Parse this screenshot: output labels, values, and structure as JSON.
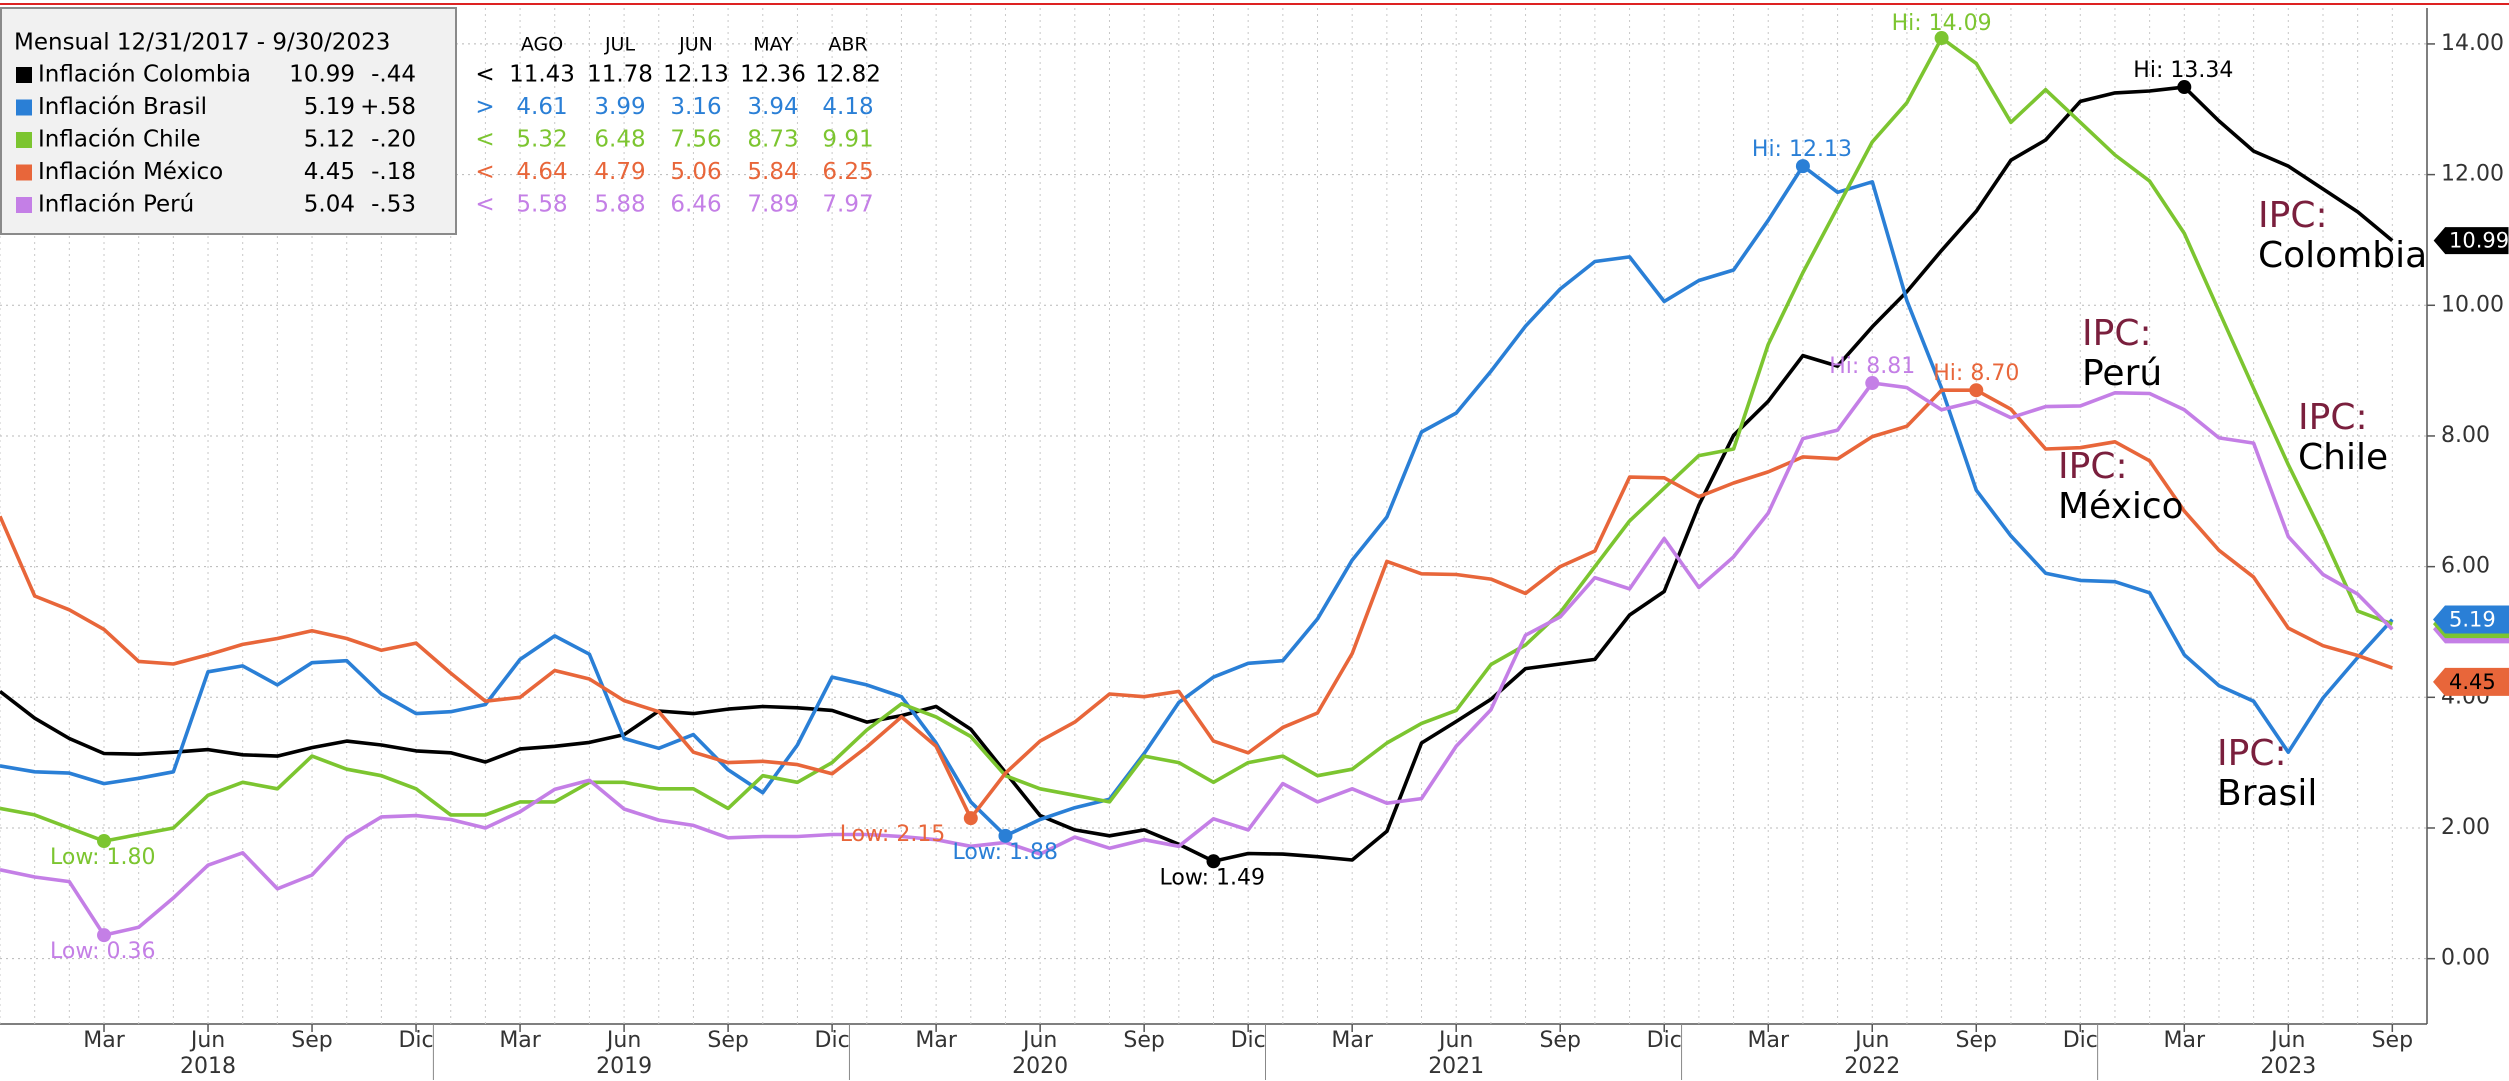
{
  "chart_data": {
    "type": "line",
    "legend_title": "Mensual 12/31/2017 - 9/30/2023",
    "table_headers": [
      "AGO",
      "JUL",
      "JUN",
      "MAY",
      "ABR"
    ],
    "x": [
      "2017-12",
      "2018-01",
      "2018-02",
      "2018-03",
      "2018-04",
      "2018-05",
      "2018-06",
      "2018-07",
      "2018-08",
      "2018-09",
      "2018-10",
      "2018-11",
      "2018-12",
      "2019-01",
      "2019-02",
      "2019-03",
      "2019-04",
      "2019-05",
      "2019-06",
      "2019-07",
      "2019-08",
      "2019-09",
      "2019-10",
      "2019-11",
      "2019-12",
      "2020-01",
      "2020-02",
      "2020-03",
      "2020-04",
      "2020-05",
      "2020-06",
      "2020-07",
      "2020-08",
      "2020-09",
      "2020-10",
      "2020-11",
      "2020-12",
      "2021-01",
      "2021-02",
      "2021-03",
      "2021-04",
      "2021-05",
      "2021-06",
      "2021-07",
      "2021-08",
      "2021-09",
      "2021-10",
      "2021-11",
      "2021-12",
      "2022-01",
      "2022-02",
      "2022-03",
      "2022-04",
      "2022-05",
      "2022-06",
      "2022-07",
      "2022-08",
      "2022-09",
      "2022-10",
      "2022-11",
      "2022-12",
      "2023-01",
      "2023-02",
      "2023-03",
      "2023-04",
      "2023-05",
      "2023-06",
      "2023-07",
      "2023-08",
      "2023-09"
    ],
    "xlim": [
      "2017-12",
      "2023-10"
    ],
    "xticks": [
      {
        "value": "2018-03",
        "label": "Mar"
      },
      {
        "value": "2018-06",
        "label": "Jun"
      },
      {
        "value": "2018-09",
        "label": "Sep"
      },
      {
        "value": "2018-12",
        "label": "Dic"
      },
      {
        "value": "2019-03",
        "label": "Mar"
      },
      {
        "value": "2019-06",
        "label": "Jun"
      },
      {
        "value": "2019-09",
        "label": "Sep"
      },
      {
        "value": "2019-12",
        "label": "Dic"
      },
      {
        "value": "2020-03",
        "label": "Mar"
      },
      {
        "value": "2020-06",
        "label": "Jun"
      },
      {
        "value": "2020-09",
        "label": "Sep"
      },
      {
        "value": "2020-12",
        "label": "Dic"
      },
      {
        "value": "2021-03",
        "label": "Mar"
      },
      {
        "value": "2021-06",
        "label": "Jun"
      },
      {
        "value": "2021-09",
        "label": "Sep"
      },
      {
        "value": "2021-12",
        "label": "Dic"
      },
      {
        "value": "2022-03",
        "label": "Mar"
      },
      {
        "value": "2022-06",
        "label": "Jun"
      },
      {
        "value": "2022-09",
        "label": "Sep"
      },
      {
        "value": "2022-12",
        "label": "Dic"
      },
      {
        "value": "2023-03",
        "label": "Mar"
      },
      {
        "value": "2023-06",
        "label": "Jun"
      },
      {
        "value": "2023-09",
        "label": "Sep"
      }
    ],
    "xyears": [
      "2018",
      "2019",
      "2020",
      "2021",
      "2022",
      "2023"
    ],
    "ylim": [
      -1,
      14.55
    ],
    "yticks": [
      {
        "value": 0,
        "label": "0.00"
      },
      {
        "value": 2,
        "label": "2.00"
      },
      {
        "value": 4,
        "label": "4.00"
      },
      {
        "value": 6,
        "label": "6.00"
      },
      {
        "value": 8,
        "label": "8.00"
      },
      {
        "value": 10,
        "label": "10.00"
      },
      {
        "value": 12,
        "label": "12.00"
      },
      {
        "value": 14,
        "label": "14.00"
      }
    ],
    "grid": true,
    "series": [
      {
        "name": "Inflación Colombia",
        "color": "#000000",
        "change": "-.44",
        "arrow": "<",
        "values": [
          4.09,
          3.68,
          3.37,
          3.14,
          3.13,
          3.16,
          3.2,
          3.12,
          3.1,
          3.23,
          3.33,
          3.27,
          3.18,
          3.15,
          3.01,
          3.21,
          3.25,
          3.31,
          3.43,
          3.79,
          3.75,
          3.82,
          3.86,
          3.84,
          3.8,
          3.62,
          3.72,
          3.86,
          3.51,
          2.85,
          2.19,
          1.97,
          1.88,
          1.97,
          1.75,
          1.49,
          1.61,
          1.6,
          1.56,
          1.51,
          1.95,
          3.3,
          3.63,
          3.97,
          4.44,
          4.51,
          4.58,
          5.26,
          5.62,
          6.94,
          8.01,
          8.53,
          9.23,
          9.07,
          9.67,
          10.21,
          10.84,
          11.44,
          12.22,
          12.53,
          13.12,
          13.25,
          13.28,
          13.34,
          12.82,
          12.36,
          12.13,
          11.78,
          11.43,
          10.99
        ]
      },
      {
        "name": "Inflación Brasil",
        "color": "#2a7fd6",
        "change": "+.58",
        "arrow": ">",
        "values": [
          2.95,
          2.86,
          2.84,
          2.68,
          2.76,
          2.86,
          4.39,
          4.48,
          4.19,
          4.53,
          4.56,
          4.05,
          3.75,
          3.78,
          3.89,
          4.58,
          4.94,
          4.66,
          3.37,
          3.22,
          3.43,
          2.89,
          2.54,
          3.27,
          4.31,
          4.19,
          4.01,
          3.3,
          2.4,
          1.88,
          2.13,
          2.31,
          2.44,
          3.14,
          3.92,
          4.31,
          4.52,
          4.56,
          5.2,
          6.1,
          6.76,
          8.06,
          8.35,
          8.99,
          9.68,
          10.25,
          10.67,
          10.74,
          10.06,
          10.38,
          10.54,
          11.3,
          12.13,
          11.73,
          11.89,
          10.07,
          8.73,
          7.17,
          6.47,
          5.9,
          5.79,
          5.77,
          5.6,
          4.65,
          4.18,
          3.94,
          3.16,
          3.99,
          4.61,
          5.19
        ]
      },
      {
        "name": "Inflación Chile",
        "color": "#7cc530",
        "change": "-.20",
        "arrow": "<",
        "values": [
          2.3,
          2.2,
          2.0,
          1.8,
          1.9,
          2.0,
          2.5,
          2.7,
          2.6,
          3.1,
          2.9,
          2.8,
          2.6,
          2.2,
          2.2,
          2.4,
          2.4,
          2.7,
          2.7,
          2.6,
          2.6,
          2.3,
          2.8,
          2.7,
          3.0,
          3.5,
          3.9,
          3.7,
          3.4,
          2.8,
          2.6,
          2.5,
          2.4,
          3.1,
          3.0,
          2.7,
          3.0,
          3.1,
          2.8,
          2.9,
          3.3,
          3.6,
          3.8,
          4.5,
          4.8,
          5.3,
          6.0,
          6.7,
          7.2,
          7.7,
          7.8,
          9.4,
          10.5,
          11.5,
          12.5,
          13.1,
          14.09,
          13.7,
          12.8,
          13.3,
          12.8,
          12.3,
          11.9,
          11.1,
          9.91,
          8.73,
          7.56,
          6.48,
          5.32,
          5.12
        ]
      },
      {
        "name": "Inflación México",
        "color": "#e8663a",
        "change": "-.18",
        "arrow": "<",
        "values": [
          6.77,
          5.55,
          5.34,
          5.04,
          4.55,
          4.51,
          4.65,
          4.81,
          4.9,
          5.02,
          4.9,
          4.72,
          4.83,
          4.37,
          3.94,
          4.0,
          4.41,
          4.28,
          3.95,
          3.78,
          3.16,
          3.0,
          3.02,
          2.97,
          2.83,
          3.24,
          3.7,
          3.25,
          2.15,
          2.84,
          3.33,
          3.62,
          4.05,
          4.01,
          4.09,
          3.33,
          3.15,
          3.54,
          3.76,
          4.67,
          6.08,
          5.89,
          5.88,
          5.81,
          5.59,
          6.0,
          6.24,
          7.37,
          7.36,
          7.07,
          7.28,
          7.45,
          7.68,
          7.65,
          7.99,
          8.15,
          8.7,
          8.7,
          8.41,
          7.8,
          7.82,
          7.91,
          7.62,
          6.85,
          6.25,
          5.84,
          5.06,
          4.79,
          4.64,
          4.45
        ]
      },
      {
        "name": "Inflación Perú",
        "color": "#c47fe6",
        "change": "-.53",
        "arrow": "<",
        "values": [
          1.36,
          1.25,
          1.18,
          0.36,
          0.48,
          0.93,
          1.43,
          1.62,
          1.07,
          1.28,
          1.85,
          2.17,
          2.19,
          2.13,
          2.0,
          2.25,
          2.59,
          2.73,
          2.29,
          2.12,
          2.04,
          1.85,
          1.87,
          1.87,
          1.9,
          1.9,
          1.87,
          1.82,
          1.72,
          1.78,
          1.6,
          1.86,
          1.69,
          1.82,
          1.72,
          2.14,
          1.97,
          2.68,
          2.4,
          2.6,
          2.38,
          2.45,
          3.25,
          3.81,
          4.95,
          5.23,
          5.83,
          5.66,
          6.43,
          5.68,
          6.15,
          6.82,
          7.96,
          8.09,
          8.81,
          8.74,
          8.4,
          8.53,
          8.28,
          8.45,
          8.46,
          8.66,
          8.65,
          8.4,
          7.97,
          7.89,
          6.46,
          5.88,
          5.58,
          5.04
        ]
      }
    ],
    "annotations": [
      {
        "text": "Hi: 13.34",
        "series": 0,
        "x": "2023-03"
      },
      {
        "text": "Low: 1.49",
        "series": 0,
        "x": "2020-11"
      },
      {
        "text": "Hi: 12.13",
        "series": 1,
        "x": "2022-04"
      },
      {
        "text": "Low: 1.88",
        "series": 1,
        "x": "2020-05"
      },
      {
        "text": "Hi: 14.09",
        "series": 2,
        "x": "2022-08"
      },
      {
        "text": "Low: 1.80",
        "series": 2,
        "x": "2018-03"
      },
      {
        "text": "Hi: 8.70",
        "series": 3,
        "x": "2022-09"
      },
      {
        "text": "Low: 2.15",
        "series": 3,
        "x": "2020-04"
      },
      {
        "text": "Hi: 8.81",
        "series": 4,
        "x": "2022-06"
      },
      {
        "text": "Low: 0.36",
        "series": 4,
        "x": "2018-03"
      }
    ],
    "callouts": [
      {
        "prefix": "IPC:",
        "label": "Colombia"
      },
      {
        "prefix": "IPC:",
        "label": "Brasil"
      },
      {
        "prefix": "IPC:",
        "label": "Chile"
      },
      {
        "prefix": "IPC:",
        "label": "México"
      },
      {
        "prefix": "IPC:",
        "label": "Perú"
      }
    ]
  }
}
